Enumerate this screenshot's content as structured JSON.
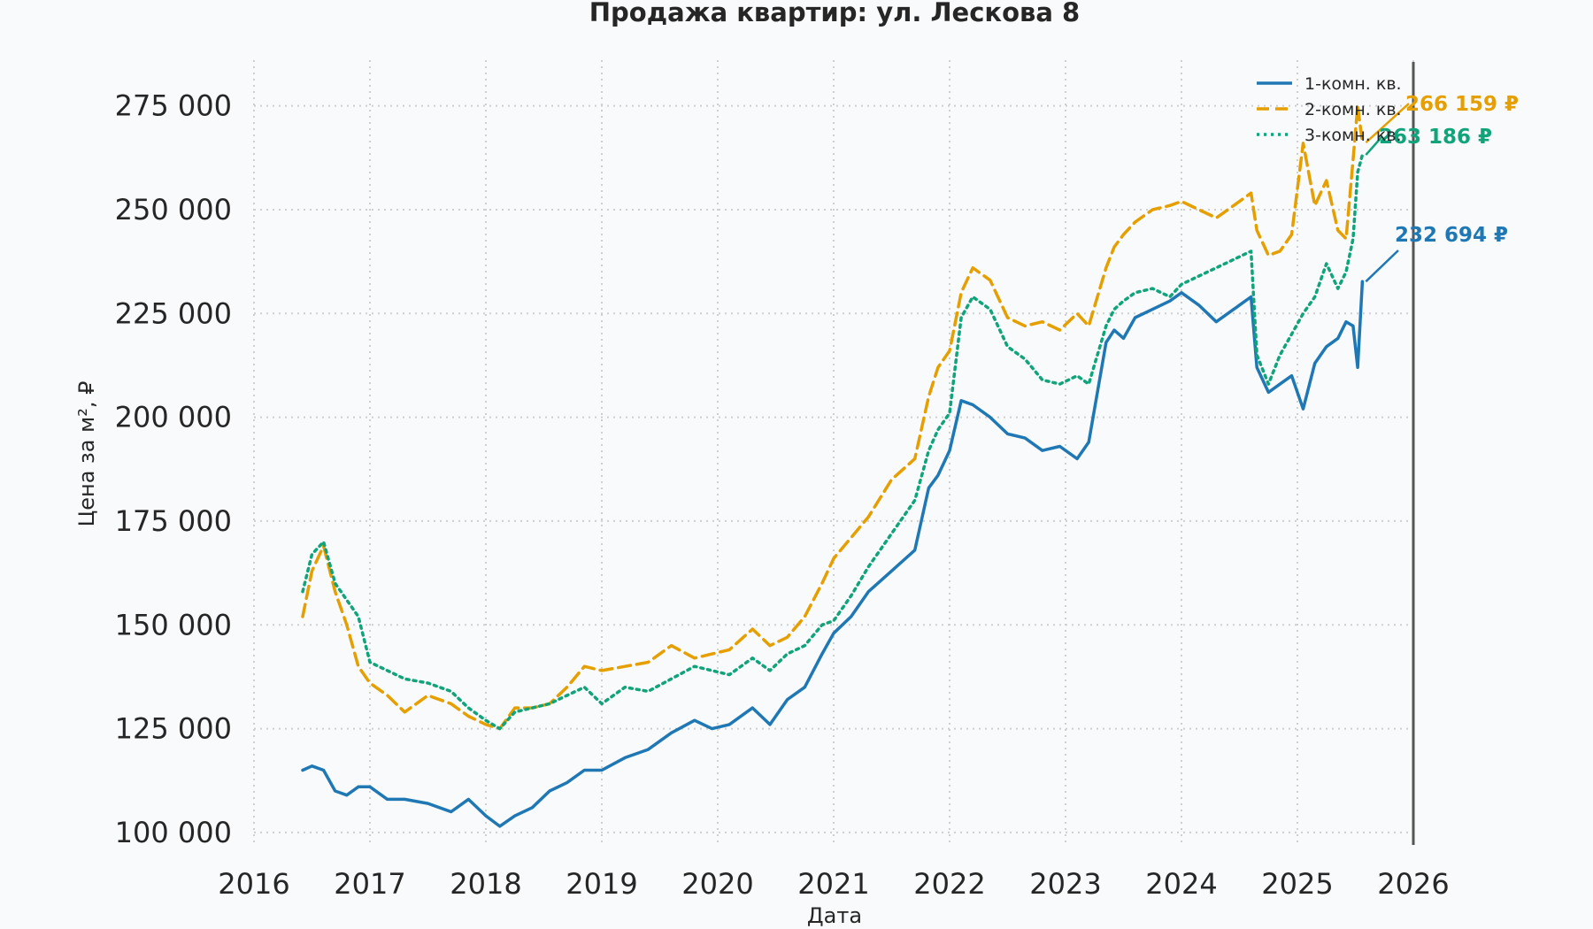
{
  "chart_data": {
    "type": "line",
    "title": "Продажа квартир: ул. Лескова 8",
    "xlabel": "Дата",
    "ylabel": "Цена за м², ₽",
    "xlim": [
      2016,
      2026
    ],
    "ylim": [
      97000,
      286000
    ],
    "x_ticks": [
      2016,
      2017,
      2018,
      2019,
      2020,
      2021,
      2022,
      2023,
      2024,
      2025,
      2026
    ],
    "x_tick_labels": [
      "2016",
      "2017",
      "2018",
      "2019",
      "2020",
      "2021",
      "2022",
      "2023",
      "2024",
      "2025",
      "2026"
    ],
    "y_ticks": [
      100000,
      125000,
      150000,
      175000,
      200000,
      225000,
      250000,
      275000
    ],
    "y_tick_labels": [
      "100 000",
      "125 000",
      "150 000",
      "175 000",
      "200 000",
      "225 000",
      "250 000",
      "275 000"
    ],
    "grid": true,
    "legend_position": "top-right",
    "marker_line_year": 2026,
    "series": [
      {
        "name": "1-комн. кв.",
        "color": "#1f78b4",
        "style": "solid",
        "x": [
          2016.42,
          2016.5,
          2016.6,
          2016.7,
          2016.8,
          2016.9,
          2017.0,
          2017.15,
          2017.3,
          2017.5,
          2017.7,
          2017.85,
          2018.0,
          2018.12,
          2018.25,
          2018.4,
          2018.55,
          2018.7,
          2018.85,
          2019.0,
          2019.2,
          2019.4,
          2019.6,
          2019.8,
          2019.95,
          2020.1,
          2020.3,
          2020.45,
          2020.6,
          2020.75,
          2020.9,
          2021.0,
          2021.15,
          2021.3,
          2021.5,
          2021.7,
          2021.82,
          2021.9,
          2022.0,
          2022.1,
          2022.2,
          2022.35,
          2022.5,
          2022.65,
          2022.8,
          2022.95,
          2023.1,
          2023.2,
          2023.35,
          2023.42,
          2023.5,
          2023.6,
          2023.75,
          2023.9,
          2024.0,
          2024.15,
          2024.3,
          2024.45,
          2024.6,
          2024.65,
          2024.75,
          2024.85,
          2024.95,
          2025.05,
          2025.15,
          2025.25,
          2025.35,
          2025.42,
          2025.48,
          2025.52,
          2025.56
        ],
        "values": [
          115000,
          116000,
          115000,
          110000,
          109000,
          111000,
          111000,
          108000,
          108000,
          107000,
          105000,
          108000,
          104000,
          101500,
          104000,
          106000,
          110000,
          112000,
          115000,
          115000,
          118000,
          120000,
          124000,
          127000,
          125000,
          126000,
          130000,
          126000,
          132000,
          135000,
          143000,
          148000,
          152000,
          158000,
          163000,
          168000,
          183000,
          186000,
          192000,
          204000,
          203000,
          200000,
          196000,
          195000,
          192000,
          193000,
          190000,
          194000,
          218000,
          221000,
          219000,
          224000,
          226000,
          228000,
          230000,
          227000,
          223000,
          226000,
          229000,
          212000,
          206000,
          208000,
          210000,
          202000,
          213000,
          217000,
          219000,
          223000,
          222000,
          212000,
          232694
        ]
      },
      {
        "name": "2-комн. кв.",
        "color": "#e69f00",
        "style": "dashed",
        "x": [
          2016.42,
          2016.5,
          2016.6,
          2016.7,
          2016.8,
          2016.9,
          2017.0,
          2017.15,
          2017.3,
          2017.5,
          2017.7,
          2017.85,
          2018.0,
          2018.12,
          2018.25,
          2018.4,
          2018.55,
          2018.7,
          2018.85,
          2019.0,
          2019.2,
          2019.4,
          2019.6,
          2019.8,
          2019.95,
          2020.1,
          2020.3,
          2020.45,
          2020.6,
          2020.75,
          2020.9,
          2021.0,
          2021.15,
          2021.3,
          2021.5,
          2021.7,
          2021.82,
          2021.9,
          2022.0,
          2022.1,
          2022.2,
          2022.35,
          2022.5,
          2022.65,
          2022.8,
          2022.95,
          2023.1,
          2023.2,
          2023.35,
          2023.42,
          2023.5,
          2023.6,
          2023.75,
          2023.9,
          2024.0,
          2024.15,
          2024.3,
          2024.45,
          2024.6,
          2024.65,
          2024.75,
          2024.85,
          2024.95,
          2025.05,
          2025.15,
          2025.25,
          2025.35,
          2025.42,
          2025.48,
          2025.52,
          2025.56
        ],
        "values": [
          152000,
          163000,
          169000,
          158000,
          150000,
          140000,
          136000,
          133000,
          129000,
          133000,
          131000,
          128000,
          126000,
          125000,
          130000,
          130000,
          131000,
          135000,
          140000,
          139000,
          140000,
          141000,
          145000,
          142000,
          143000,
          144000,
          149000,
          145000,
          147000,
          152000,
          160000,
          166000,
          171000,
          176000,
          185000,
          190000,
          205000,
          212000,
          216000,
          230000,
          236000,
          233000,
          224000,
          222000,
          223000,
          221000,
          225000,
          222000,
          236000,
          241000,
          244000,
          247000,
          250000,
          251000,
          252000,
          250000,
          248000,
          251000,
          254000,
          245000,
          239000,
          240000,
          244000,
          266000,
          251000,
          257000,
          245000,
          243000,
          262000,
          275000,
          266159
        ]
      },
      {
        "name": "3-комн. кв.",
        "color": "#11a37a",
        "style": "dotted",
        "x": [
          2016.42,
          2016.5,
          2016.6,
          2016.7,
          2016.8,
          2016.9,
          2017.0,
          2017.15,
          2017.3,
          2017.5,
          2017.7,
          2017.85,
          2018.0,
          2018.12,
          2018.25,
          2018.4,
          2018.55,
          2018.7,
          2018.85,
          2019.0,
          2019.2,
          2019.4,
          2019.6,
          2019.8,
          2019.95,
          2020.1,
          2020.3,
          2020.45,
          2020.6,
          2020.75,
          2020.9,
          2021.0,
          2021.15,
          2021.3,
          2021.5,
          2021.7,
          2021.82,
          2021.9,
          2022.0,
          2022.1,
          2022.2,
          2022.35,
          2022.5,
          2022.65,
          2022.8,
          2022.95,
          2023.1,
          2023.2,
          2023.35,
          2023.42,
          2023.5,
          2023.6,
          2023.75,
          2023.9,
          2024.0,
          2024.15,
          2024.3,
          2024.45,
          2024.6,
          2024.65,
          2024.75,
          2024.85,
          2024.95,
          2025.05,
          2025.15,
          2025.25,
          2025.35,
          2025.42,
          2025.48,
          2025.52,
          2025.56
        ],
        "values": [
          158000,
          167000,
          170000,
          160000,
          156000,
          152000,
          141000,
          139000,
          137000,
          136000,
          134000,
          130000,
          127000,
          125000,
          129000,
          130000,
          131000,
          133000,
          135000,
          131000,
          135000,
          134000,
          137000,
          140000,
          139000,
          138000,
          142000,
          139000,
          143000,
          145000,
          150000,
          151000,
          157000,
          164000,
          172000,
          180000,
          192000,
          197000,
          201000,
          224000,
          229000,
          226000,
          217000,
          214000,
          209000,
          208000,
          210000,
          208000,
          222000,
          226000,
          228000,
          230000,
          231000,
          229000,
          232000,
          234000,
          236000,
          238000,
          240000,
          215000,
          208000,
          215000,
          220000,
          225000,
          229000,
          237000,
          231000,
          235000,
          243000,
          259000,
          263186
        ]
      }
    ],
    "annotations": [
      {
        "series": "2-комн. кв.",
        "label": "266 159 ₽",
        "color": "#e69f00",
        "x": 2025.56,
        "y": 266159
      },
      {
        "series": "3-комн. кв.",
        "label": "263 186 ₽",
        "color": "#11a37a",
        "x": 2025.56,
        "y": 263186
      },
      {
        "series": "1-комн. кв.",
        "label": "232 694 ₽",
        "color": "#1f78b4",
        "x": 2025.56,
        "y": 232694
      }
    ]
  }
}
